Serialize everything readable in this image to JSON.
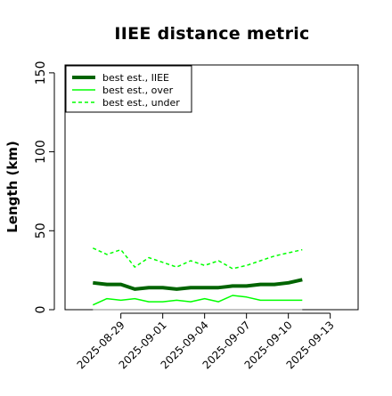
{
  "chart_data": {
    "type": "line",
    "title": "IIEE distance metric",
    "ylabel": "Length (km)",
    "xlabel": "",
    "ylim": [
      0,
      155
    ],
    "xlim": [
      "2025-08-25",
      "2025-09-15"
    ],
    "yticks": [
      0,
      50,
      100,
      150
    ],
    "xticks": [
      "2025-08-29",
      "2025-09-01",
      "2025-09-04",
      "2025-09-07",
      "2025-09-10",
      "2025-09-13"
    ],
    "grid": false,
    "legend_position": "top-left",
    "x": [
      "2025-08-27",
      "2025-08-28",
      "2025-08-29",
      "2025-08-30",
      "2025-08-31",
      "2025-09-01",
      "2025-09-02",
      "2025-09-03",
      "2025-09-04",
      "2025-09-05",
      "2025-09-06",
      "2025-09-07",
      "2025-09-08",
      "2025-09-09",
      "2025-09-10",
      "2025-09-11"
    ],
    "series": [
      {
        "name": "best est., IIEE",
        "color": "#006400",
        "style": "solid-thick",
        "values": [
          17,
          16,
          16,
          13,
          14,
          14,
          13,
          14,
          14,
          14,
          15,
          15,
          16,
          16,
          17,
          19
        ]
      },
      {
        "name": "best est., over",
        "color": "#00ff00",
        "style": "solid",
        "values": [
          3,
          7,
          6,
          7,
          5,
          5,
          6,
          5,
          7,
          5,
          9,
          8,
          6,
          6,
          6,
          6
        ]
      },
      {
        "name": "best est., under",
        "color": "#00ff00",
        "style": "dashed",
        "values": [
          39,
          35,
          38,
          27,
          33,
          30,
          27,
          31,
          28,
          31,
          26,
          28,
          31,
          34,
          36,
          38
        ]
      },
      {
        "name": "",
        "color": "#888888",
        "style": "baseline",
        "values": [
          0,
          0,
          0,
          0,
          0,
          0,
          0,
          0,
          0,
          0,
          0,
          0,
          0,
          0,
          0,
          0
        ]
      }
    ]
  }
}
